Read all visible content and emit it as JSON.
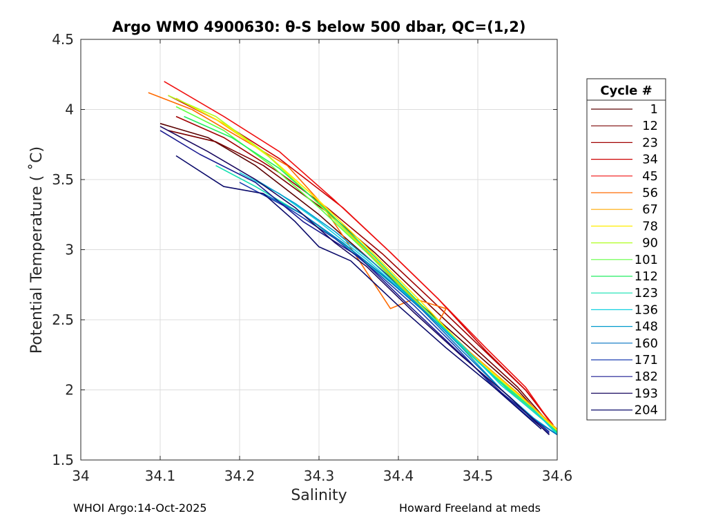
{
  "chart_data": {
    "type": "line",
    "title": "Argo WMO 4900630: θ-S below 500 dbar,  QC=(1,2)",
    "xlabel": "Salinity",
    "ylabel": "Potential Temperature ( ˚C)",
    "xlim": [
      34.0,
      34.6
    ],
    "ylim": [
      1.5,
      4.5
    ],
    "xticks": [
      34.0,
      34.1,
      34.2,
      34.3,
      34.4,
      34.5,
      34.6
    ],
    "xtick_labels": [
      "34",
      "34.1",
      "34.2",
      "34.3",
      "34.4",
      "34.5",
      "34.6"
    ],
    "yticks": [
      1.5,
      2.0,
      2.5,
      3.0,
      3.5,
      4.0,
      4.5
    ],
    "ytick_labels": [
      "1.5",
      "2",
      "2.5",
      "3",
      "3.5",
      "4",
      "4.5"
    ],
    "grid": true,
    "legend": {
      "title": "Cycle #",
      "position": "outside-right",
      "entries": [
        {
          "label": "1",
          "color": "#5a0000"
        },
        {
          "label": "12",
          "color": "#7a0000"
        },
        {
          "label": "23",
          "color": "#a00000"
        },
        {
          "label": "34",
          "color": "#cc0000"
        },
        {
          "label": "45",
          "color": "#f01010"
        },
        {
          "label": "56",
          "color": "#ff6a00"
        },
        {
          "label": "67",
          "color": "#ffaa00"
        },
        {
          "label": "78",
          "color": "#ffee00"
        },
        {
          "label": "90",
          "color": "#b0ff20"
        },
        {
          "label": "101",
          "color": "#60ff40"
        },
        {
          "label": "112",
          "color": "#20ee60"
        },
        {
          "label": "123",
          "color": "#10e0b0"
        },
        {
          "label": "136",
          "color": "#10d0e0"
        },
        {
          "label": "148",
          "color": "#0099cc"
        },
        {
          "label": "160",
          "color": "#0070c0"
        },
        {
          "label": "171",
          "color": "#1a3cb0"
        },
        {
          "label": "182",
          "color": "#1a1a90"
        },
        {
          "label": "193",
          "color": "#1a0a60"
        },
        {
          "label": "204",
          "color": "#0a0a6a"
        }
      ]
    },
    "series": [
      {
        "name": "1",
        "x": [
          34.1,
          34.16,
          34.22,
          34.3,
          34.36,
          34.43,
          34.5,
          34.55,
          34.59
        ],
        "y": [
          3.9,
          3.8,
          3.6,
          3.25,
          2.95,
          2.6,
          2.25,
          2.0,
          1.75
        ]
      },
      {
        "name": "12",
        "x": [
          34.11,
          34.17,
          34.23,
          34.31,
          34.37,
          34.44,
          34.5,
          34.55,
          34.59
        ],
        "y": [
          3.85,
          3.77,
          3.6,
          3.27,
          2.98,
          2.6,
          2.28,
          2.02,
          1.76
        ]
      },
      {
        "name": "23",
        "x": [
          34.12,
          34.18,
          34.25,
          34.31,
          34.38,
          34.44,
          34.51,
          34.56,
          34.59
        ],
        "y": [
          3.95,
          3.8,
          3.55,
          3.3,
          2.97,
          2.65,
          2.27,
          2.0,
          1.78
        ]
      },
      {
        "name": "34",
        "x": [
          34.11,
          34.18,
          34.25,
          34.33,
          34.39,
          34.45,
          34.51,
          34.56,
          34.595
        ],
        "y": [
          4.1,
          3.9,
          3.65,
          3.3,
          2.98,
          2.65,
          2.28,
          2.0,
          1.75
        ]
      },
      {
        "name": "45",
        "x": [
          34.105,
          34.18,
          34.25,
          34.32,
          34.39,
          34.45,
          34.51,
          34.56,
          34.595
        ],
        "y": [
          4.2,
          3.95,
          3.7,
          3.35,
          2.98,
          2.65,
          2.3,
          2.02,
          1.74
        ]
      },
      {
        "name": "56",
        "x": [
          34.085,
          34.14,
          34.2,
          34.26,
          34.3,
          34.33,
          34.39,
          34.42,
          34.46,
          34.45,
          34.5,
          34.6
        ],
        "y": [
          4.12,
          4.0,
          3.8,
          3.6,
          3.35,
          3.1,
          2.58,
          2.65,
          2.58,
          2.48,
          2.2,
          1.7
        ]
      },
      {
        "name": "67",
        "x": [
          34.12,
          34.17,
          34.23,
          34.29,
          34.35,
          34.42,
          34.49,
          34.55,
          34.6
        ],
        "y": [
          4.08,
          3.93,
          3.7,
          3.4,
          3.05,
          2.65,
          2.27,
          1.98,
          1.72
        ]
      },
      {
        "name": "78",
        "x": [
          34.13,
          34.18,
          34.24,
          34.3,
          34.36,
          34.43,
          34.49,
          34.55,
          34.6
        ],
        "y": [
          4.05,
          3.9,
          3.65,
          3.35,
          3.02,
          2.62,
          2.26,
          1.97,
          1.71
        ]
      },
      {
        "name": "90",
        "x": [
          34.11,
          34.17,
          34.23,
          34.29,
          34.35,
          34.42,
          34.49,
          34.55,
          34.6
        ],
        "y": [
          4.1,
          3.95,
          3.7,
          3.38,
          3.04,
          2.64,
          2.25,
          1.96,
          1.7
        ]
      },
      {
        "name": "101",
        "x": [
          34.12,
          34.18,
          34.24,
          34.3,
          34.36,
          34.43,
          34.5,
          34.55,
          34.6
        ],
        "y": [
          4.02,
          3.85,
          3.6,
          3.3,
          2.98,
          2.58,
          2.2,
          1.95,
          1.7
        ]
      },
      {
        "name": "112",
        "x": [
          34.13,
          34.19,
          34.25,
          34.31,
          34.37,
          34.43,
          34.5,
          34.55,
          34.6
        ],
        "y": [
          3.95,
          3.8,
          3.58,
          3.28,
          2.95,
          2.6,
          2.2,
          1.94,
          1.7
        ]
      },
      {
        "name": "123",
        "x": [
          34.17,
          34.22,
          34.28,
          34.34,
          34.4,
          34.46,
          34.52,
          34.57,
          34.6
        ],
        "y": [
          3.6,
          3.45,
          3.25,
          3.0,
          2.72,
          2.42,
          2.1,
          1.86,
          1.69
        ]
      },
      {
        "name": "136",
        "x": [
          34.2,
          34.25,
          34.3,
          34.36,
          34.42,
          34.48,
          34.53,
          34.58,
          34.6
        ],
        "y": [
          3.55,
          3.4,
          3.2,
          2.93,
          2.63,
          2.32,
          2.03,
          1.8,
          1.68
        ]
      },
      {
        "name": "148",
        "x": [
          34.22,
          34.27,
          34.32,
          34.37,
          34.43,
          34.48,
          34.53,
          34.57,
          34.6
        ],
        "y": [
          3.5,
          3.33,
          3.13,
          2.9,
          2.58,
          2.3,
          2.0,
          1.8,
          1.68
        ]
      },
      {
        "name": "160",
        "x": [
          34.23,
          34.28,
          34.33,
          34.38,
          34.43,
          34.48,
          34.53,
          34.57,
          34.6
        ],
        "y": [
          3.4,
          3.25,
          3.05,
          2.82,
          2.57,
          2.28,
          2.0,
          1.79,
          1.68
        ]
      },
      {
        "name": "171",
        "x": [
          34.2,
          34.26,
          34.32,
          34.37,
          34.42,
          34.47,
          34.52,
          34.57,
          34.59
        ],
        "y": [
          3.48,
          3.3,
          3.08,
          2.85,
          2.6,
          2.32,
          2.02,
          1.78,
          1.69
        ]
      },
      {
        "name": "182",
        "x": [
          34.1,
          34.15,
          34.22,
          34.28,
          34.35,
          34.41,
          34.47,
          34.53,
          34.59
        ],
        "y": [
          3.85,
          3.68,
          3.48,
          3.2,
          2.95,
          2.62,
          2.3,
          1.98,
          1.7
        ]
      },
      {
        "name": "193",
        "x": [
          34.1,
          34.16,
          34.22,
          34.27,
          34.32,
          34.36,
          34.42,
          34.48,
          34.54,
          34.59
        ],
        "y": [
          3.88,
          3.7,
          3.5,
          3.3,
          3.05,
          2.88,
          2.55,
          2.24,
          1.95,
          1.68
        ]
      },
      {
        "name": "204",
        "x": [
          34.12,
          34.18,
          34.23,
          34.27,
          34.3,
          34.34,
          34.4,
          34.46,
          34.52,
          34.58
        ],
        "y": [
          3.67,
          3.45,
          3.4,
          3.2,
          3.02,
          2.92,
          2.6,
          2.3,
          2.02,
          1.72
        ]
      }
    ]
  },
  "footer": {
    "left": "WHOI Argo:14-Oct-2025",
    "right": "Howard Freeland at meds"
  }
}
